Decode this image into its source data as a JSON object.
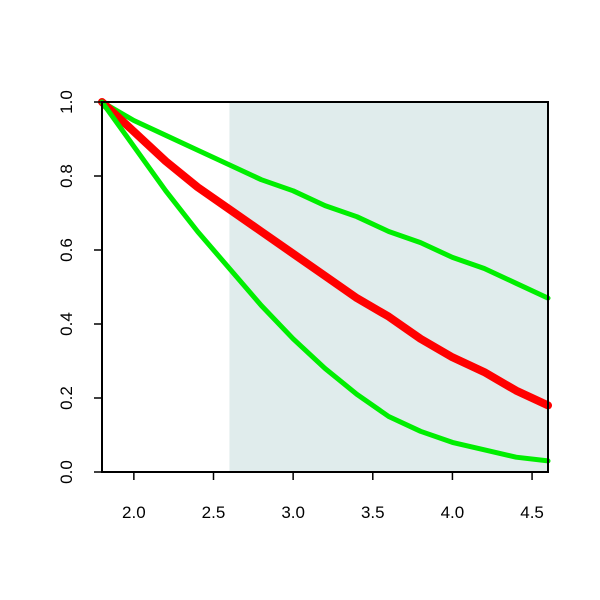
{
  "chart_data": {
    "type": "line",
    "title": "",
    "xlabel": "",
    "ylabel": "",
    "xlim": [
      1.8,
      4.6
    ],
    "ylim": [
      0.0,
      1.0
    ],
    "x_ticks": [
      {
        "value": 2.0,
        "label": "2.0"
      },
      {
        "value": 2.5,
        "label": "2.5"
      },
      {
        "value": 3.0,
        "label": "3.0"
      },
      {
        "value": 3.5,
        "label": "3.5"
      },
      {
        "value": 4.0,
        "label": "4.0"
      },
      {
        "value": 4.5,
        "label": "4.5"
      }
    ],
    "y_ticks": [
      {
        "value": 0.0,
        "label": "0.0"
      },
      {
        "value": 0.2,
        "label": "0.2"
      },
      {
        "value": 0.4,
        "label": "0.4"
      },
      {
        "value": 0.6,
        "label": "0.6"
      },
      {
        "value": 0.8,
        "label": "0.8"
      },
      {
        "value": 1.0,
        "label": "1.0"
      }
    ],
    "shaded_region": {
      "x_start": 2.6,
      "x_end": 4.6,
      "color": "#e0ecec"
    },
    "grid": false,
    "legend": "none",
    "series": [
      {
        "color": "#00ee00",
        "line_width": 5,
        "x": [
          1.8,
          2.0,
          2.2,
          2.4,
          2.6,
          2.8,
          3.0,
          3.2,
          3.4,
          3.6,
          3.8,
          4.0,
          4.2,
          4.4,
          4.6
        ],
        "y": [
          1.0,
          0.95,
          0.91,
          0.87,
          0.83,
          0.79,
          0.76,
          0.72,
          0.69,
          0.65,
          0.62,
          0.58,
          0.55,
          0.51,
          0.47
        ]
      },
      {
        "color": "#ff0000",
        "line_width": 8,
        "x": [
          1.8,
          2.0,
          2.2,
          2.4,
          2.6,
          2.8,
          3.0,
          3.2,
          3.4,
          3.6,
          3.8,
          4.0,
          4.2,
          4.4,
          4.6
        ],
        "y": [
          1.0,
          0.92,
          0.84,
          0.77,
          0.71,
          0.65,
          0.59,
          0.53,
          0.47,
          0.42,
          0.36,
          0.31,
          0.27,
          0.22,
          0.18
        ]
      },
      {
        "color": "#00ee00",
        "line_width": 5,
        "x": [
          1.8,
          2.0,
          2.2,
          2.4,
          2.6,
          2.8,
          3.0,
          3.2,
          3.4,
          3.6,
          3.8,
          4.0,
          4.2,
          4.4,
          4.6
        ],
        "y": [
          1.0,
          0.88,
          0.76,
          0.65,
          0.55,
          0.45,
          0.36,
          0.28,
          0.21,
          0.15,
          0.11,
          0.08,
          0.06,
          0.04,
          0.03
        ]
      }
    ]
  }
}
